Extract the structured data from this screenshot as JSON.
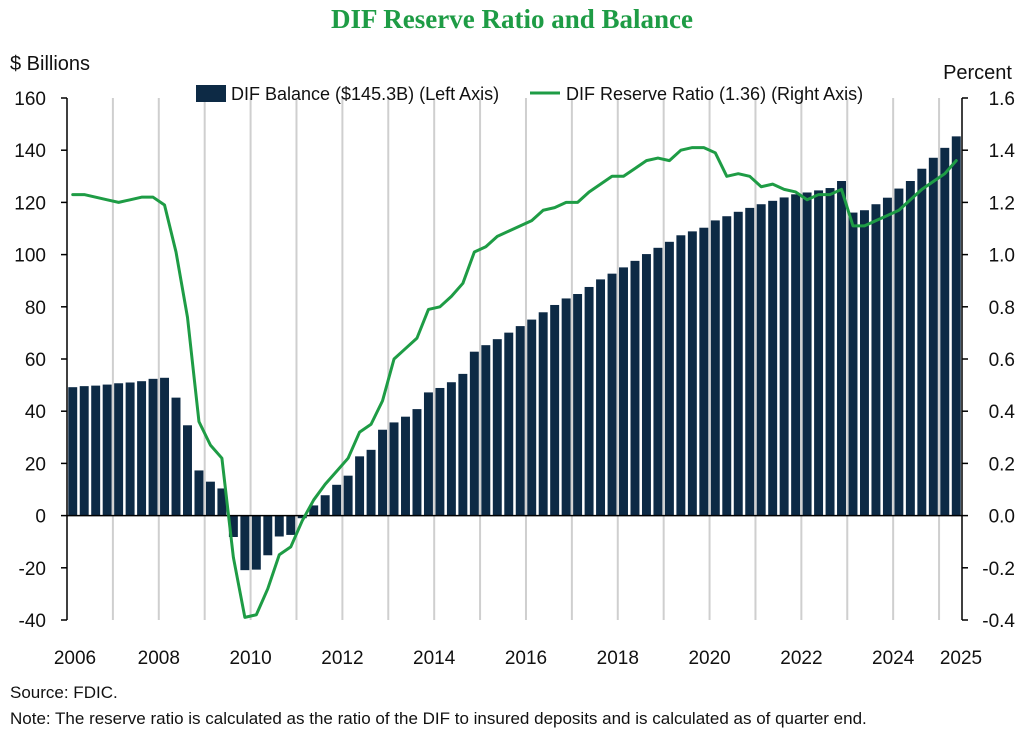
{
  "chart_data": {
    "type": "bar+line",
    "title": "DIF Reserve Ratio and Balance",
    "left_axis_label": "$ Billions",
    "right_axis_label": "Percent",
    "left_ylim": [
      -40,
      160
    ],
    "right_ylim": [
      -0.4,
      1.6
    ],
    "left_ticks": [
      "160",
      "140",
      "120",
      "100",
      "80",
      "60",
      "40",
      "20",
      "0",
      "-20",
      "-40"
    ],
    "right_ticks": [
      "1.6",
      "1.4",
      "1.2",
      "1.0",
      "0.8",
      "0.6",
      "0.4",
      "0.2",
      "0.0",
      "-0.2",
      "-0.4"
    ],
    "x_tick_labels": [
      "2006",
      "2008",
      "2010",
      "2012",
      "2014",
      "2016",
      "2018",
      "2020",
      "2022",
      "2024",
      "2025"
    ],
    "x_start_year": 2006,
    "quarters_per_year": 4,
    "legend": {
      "bar_label": "DIF Balance ($145.3B) (Left Axis)",
      "line_label": "DIF Reserve Ratio (1.36) (Right Axis)"
    },
    "series": [
      {
        "name": "DIF Balance",
        "axis": "left",
        "kind": "bar",
        "color": "#0d2a45",
        "values": [
          49.2,
          49.6,
          49.8,
          50.2,
          50.7,
          51.0,
          51.5,
          52.4,
          52.8,
          45.2,
          34.6,
          17.3,
          13.0,
          10.4,
          -8.2,
          -20.9,
          -20.7,
          -15.2,
          -8.0,
          -7.4,
          -1.0,
          3.9,
          7.8,
          11.8,
          15.3,
          22.7,
          25.2,
          32.9,
          35.7,
          37.9,
          40.8,
          47.2,
          48.9,
          51.1,
          54.3,
          62.8,
          65.3,
          67.6,
          70.1,
          72.6,
          75.1,
          77.9,
          80.7,
          83.2,
          84.9,
          87.6,
          90.5,
          92.7,
          95.1,
          97.6,
          100.2,
          102.6,
          104.9,
          107.4,
          108.9,
          110.3,
          113.1,
          114.7,
          116.4,
          117.9,
          119.3,
          120.6,
          121.9,
          123.1,
          123.8,
          124.6,
          125.5,
          128.2,
          116.1,
          117.0,
          119.3,
          121.8,
          125.3,
          128.2,
          132.9,
          137.1,
          140.9,
          145.3
        ]
      },
      {
        "name": "DIF Reserve Ratio",
        "axis": "right",
        "kind": "line",
        "color": "#1e9c45",
        "values": [
          1.23,
          1.23,
          1.22,
          1.21,
          1.2,
          1.21,
          1.22,
          1.22,
          1.19,
          1.01,
          0.76,
          0.36,
          0.27,
          0.22,
          -0.16,
          -0.39,
          -0.38,
          -0.28,
          -0.15,
          -0.12,
          -0.02,
          0.06,
          0.12,
          0.17,
          0.22,
          0.32,
          0.35,
          0.44,
          0.6,
          0.64,
          0.68,
          0.79,
          0.8,
          0.84,
          0.89,
          1.01,
          1.03,
          1.07,
          1.09,
          1.11,
          1.13,
          1.17,
          1.18,
          1.2,
          1.2,
          1.24,
          1.27,
          1.3,
          1.3,
          1.33,
          1.36,
          1.37,
          1.36,
          1.4,
          1.41,
          1.41,
          1.39,
          1.3,
          1.31,
          1.3,
          1.26,
          1.27,
          1.25,
          1.24,
          1.21,
          1.23,
          1.23,
          1.25,
          1.11,
          1.11,
          1.13,
          1.15,
          1.17,
          1.21,
          1.25,
          1.28,
          1.31,
          1.36
        ]
      }
    ]
  },
  "notes": {
    "source": "Source: FDIC.",
    "note": "Note: The reserve ratio is calculated as the ratio of the DIF to insured deposits and is calculated as of quarter end."
  }
}
